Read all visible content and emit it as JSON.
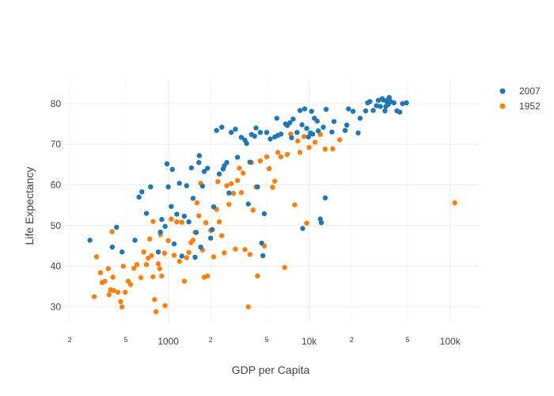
{
  "chart_data": {
    "type": "scatter",
    "title": "",
    "xlabel": "GDP per Capita",
    "ylabel": "Life Expectancy",
    "x_scale": "log",
    "xlim": [
      180,
      160000
    ],
    "ylim": [
      26,
      86
    ],
    "x_major_ticks": [
      {
        "value": 1000,
        "label": "1000"
      },
      {
        "value": 10000,
        "label": "10k"
      },
      {
        "value": 100000,
        "label": "100k"
      }
    ],
    "x_minor_ticks": [
      {
        "value": 200,
        "label": "2"
      },
      {
        "value": 500,
        "label": "5"
      },
      {
        "value": 2000,
        "label": "2"
      },
      {
        "value": 5000,
        "label": "5"
      },
      {
        "value": 20000,
        "label": "2"
      },
      {
        "value": 50000,
        "label": "5"
      }
    ],
    "y_ticks": [
      {
        "value": 30,
        "label": "30"
      },
      {
        "value": 40,
        "label": "40"
      },
      {
        "value": 50,
        "label": "50"
      },
      {
        "value": 60,
        "label": "60"
      },
      {
        "value": 70,
        "label": "70"
      },
      {
        "value": 80,
        "label": "80"
      }
    ],
    "grid": true,
    "legend_position": "top-right",
    "series": [
      {
        "name": "2007",
        "color": "#1f77b4",
        "points": [
          [
            278,
            46.4
          ],
          [
            401,
            44.7
          ],
          [
            430,
            49.6
          ],
          [
            470,
            43.5
          ],
          [
            580,
            46.4
          ],
          [
            620,
            57.0
          ],
          [
            650,
            58.3
          ],
          [
            700,
            53.0
          ],
          [
            750,
            59.5
          ],
          [
            850,
            43.5
          ],
          [
            880,
            48.4
          ],
          [
            900,
            51.5
          ],
          [
            950,
            49.8
          ],
          [
            980,
            65.2
          ],
          [
            1000,
            59.5
          ],
          [
            1050,
            54.7
          ],
          [
            1070,
            63.8
          ],
          [
            1100,
            45.5
          ],
          [
            1150,
            52.8
          ],
          [
            1200,
            60.4
          ],
          [
            1250,
            42.5
          ],
          [
            1300,
            52.3
          ],
          [
            1350,
            59.8
          ],
          [
            1400,
            50.9
          ],
          [
            1460,
            64.2
          ],
          [
            1500,
            56.7
          ],
          [
            1550,
            42.2
          ],
          [
            1580,
            48.3
          ],
          [
            1650,
            65.5
          ],
          [
            1660,
            67.2
          ],
          [
            1700,
            44.7
          ],
          [
            1750,
            59.7
          ],
          [
            1800,
            63.3
          ],
          [
            1900,
            64.1
          ],
          [
            2000,
            46.9
          ],
          [
            2050,
            49.0
          ],
          [
            2100,
            54.6
          ],
          [
            2200,
            73.4
          ],
          [
            2300,
            62.7
          ],
          [
            2400,
            74.2
          ],
          [
            2450,
            63.9
          ],
          [
            2500,
            64.7
          ],
          [
            2600,
            65.5
          ],
          [
            2700,
            58.0
          ],
          [
            2800,
            72.9
          ],
          [
            3000,
            73.7
          ],
          [
            3100,
            66.8
          ],
          [
            3300,
            71.7
          ],
          [
            3500,
            71.0
          ],
          [
            3600,
            70.2
          ],
          [
            3700,
            55.3
          ],
          [
            3800,
            65.6
          ],
          [
            3900,
            72.4
          ],
          [
            4100,
            72.0
          ],
          [
            4200,
            74.0
          ],
          [
            4300,
            59.5
          ],
          [
            4500,
            72.9
          ],
          [
            4600,
            45.7
          ],
          [
            4700,
            42.6
          ],
          [
            4800,
            52.9
          ],
          [
            5000,
            72.9
          ],
          [
            5300,
            71.3
          ],
          [
            5700,
            71.8
          ],
          [
            5900,
            76.4
          ],
          [
            6000,
            72.2
          ],
          [
            6300,
            72.5
          ],
          [
            6800,
            75.0
          ],
          [
            7000,
            74.6
          ],
          [
            7300,
            75.3
          ],
          [
            7500,
            71.6
          ],
          [
            7700,
            76.2
          ],
          [
            8200,
            72.9
          ],
          [
            8600,
            78.3
          ],
          [
            8900,
            74.8
          ],
          [
            9000,
            49.3
          ],
          [
            9300,
            78.7
          ],
          [
            9600,
            73.9
          ],
          [
            9900,
            71.8
          ],
          [
            10200,
            72.8
          ],
          [
            10400,
            78.1
          ],
          [
            10600,
            72.5
          ],
          [
            10900,
            76.4
          ],
          [
            11400,
            75.7
          ],
          [
            11600,
            73.3
          ],
          [
            12000,
            51.6
          ],
          [
            12200,
            50.7
          ],
          [
            12600,
            74.2
          ],
          [
            13000,
            56.8
          ],
          [
            13200,
            78.6
          ],
          [
            14500,
            73.0
          ],
          [
            15000,
            75.6
          ],
          [
            18000,
            73.4
          ],
          [
            18500,
            74.7
          ],
          [
            19000,
            78.7
          ],
          [
            20500,
            78.1
          ],
          [
            22300,
            72.8
          ],
          [
            23000,
            76.4
          ],
          [
            25200,
            78.2
          ],
          [
            26000,
            80.2
          ],
          [
            27000,
            80.5
          ],
          [
            28500,
            78.3
          ],
          [
            30000,
            79.5
          ],
          [
            31000,
            80.8
          ],
          [
            32000,
            79.3
          ],
          [
            33000,
            81.2
          ],
          [
            33500,
            80.9
          ],
          [
            34500,
            78.2
          ],
          [
            35000,
            79.3
          ],
          [
            35500,
            80.5
          ],
          [
            36000,
            80.9
          ],
          [
            36500,
            79.8
          ],
          [
            37000,
            81.5
          ],
          [
            38000,
            80.5
          ],
          [
            40000,
            80.2
          ],
          [
            42000,
            78.2
          ],
          [
            44000,
            77.9
          ],
          [
            46000,
            80.0
          ],
          [
            49000,
            80.2
          ]
        ]
      },
      {
        "name": "1952",
        "color": "#ff7f0e",
        "points": [
          [
            298,
            32.5
          ],
          [
            310,
            42.3
          ],
          [
            330,
            38.4
          ],
          [
            340,
            36.0
          ],
          [
            355,
            36.3
          ],
          [
            375,
            39.4
          ],
          [
            380,
            33.0
          ],
          [
            390,
            34.2
          ],
          [
            400,
            48.5
          ],
          [
            405,
            37.3
          ],
          [
            410,
            34.0
          ],
          [
            440,
            33.6
          ],
          [
            460,
            31.3
          ],
          [
            470,
            30.0
          ],
          [
            480,
            40.0
          ],
          [
            495,
            33.6
          ],
          [
            520,
            36.3
          ],
          [
            540,
            35.5
          ],
          [
            570,
            39.5
          ],
          [
            600,
            40.4
          ],
          [
            640,
            37.2
          ],
          [
            670,
            43.5
          ],
          [
            700,
            40.4
          ],
          [
            720,
            42.0
          ],
          [
            740,
            46.7
          ],
          [
            760,
            42.6
          ],
          [
            780,
            51.0
          ],
          [
            780,
            37.4
          ],
          [
            800,
            31.8
          ],
          [
            820,
            28.8
          ],
          [
            850,
            40.6
          ],
          [
            870,
            39.4
          ],
          [
            880,
            47.8
          ],
          [
            900,
            37.6
          ],
          [
            940,
            43.2
          ],
          [
            950,
            30.3
          ],
          [
            1000,
            46.3
          ],
          [
            1050,
            51.6
          ],
          [
            1100,
            42.7
          ],
          [
            1150,
            50.9
          ],
          [
            1200,
            41.2
          ],
          [
            1250,
            50.8
          ],
          [
            1300,
            36.3
          ],
          [
            1350,
            42.1
          ],
          [
            1400,
            43.4
          ],
          [
            1450,
            45.8
          ],
          [
            1500,
            46.4
          ],
          [
            1550,
            48.3
          ],
          [
            1600,
            55.6
          ],
          [
            1650,
            52.4
          ],
          [
            1700,
            60.4
          ],
          [
            1750,
            44.0
          ],
          [
            1800,
            37.3
          ],
          [
            1850,
            50.7
          ],
          [
            1900,
            37.6
          ],
          [
            2000,
            48.8
          ],
          [
            2100,
            42.3
          ],
          [
            2200,
            54.0
          ],
          [
            2250,
            60.8
          ],
          [
            2300,
            50.9
          ],
          [
            2400,
            47.5
          ],
          [
            2500,
            43.3
          ],
          [
            2600,
            59.8
          ],
          [
            2700,
            55.2
          ],
          [
            2800,
            60.3
          ],
          [
            2900,
            57.9
          ],
          [
            3000,
            44.2
          ],
          [
            3100,
            61.1
          ],
          [
            3200,
            64.1
          ],
          [
            3300,
            58.1
          ],
          [
            3400,
            62.9
          ],
          [
            3500,
            44.1
          ],
          [
            3700,
            30.0
          ],
          [
            3800,
            42.9
          ],
          [
            3900,
            65.5
          ],
          [
            4000,
            53.8
          ],
          [
            4200,
            59.5
          ],
          [
            4300,
            37.6
          ],
          [
            4500,
            65.9
          ],
          [
            4800,
            45.0
          ],
          [
            5000,
            66.9
          ],
          [
            5200,
            64.0
          ],
          [
            5500,
            59.4
          ],
          [
            5700,
            60.9
          ],
          [
            6000,
            68.0
          ],
          [
            6300,
            66.9
          ],
          [
            6700,
            39.7
          ],
          [
            7000,
            67.5
          ],
          [
            7400,
            72.5
          ],
          [
            7900,
            55.1
          ],
          [
            8300,
            70.8
          ],
          [
            8600,
            68.0
          ],
          [
            9200,
            71.9
          ],
          [
            9600,
            50.6
          ],
          [
            10000,
            69.2
          ],
          [
            11000,
            70.5
          ],
          [
            12000,
            72.4
          ],
          [
            13000,
            68.8
          ],
          [
            14700,
            68.9
          ],
          [
            16500,
            71.1
          ],
          [
            108000,
            55.6
          ]
        ]
      }
    ]
  }
}
